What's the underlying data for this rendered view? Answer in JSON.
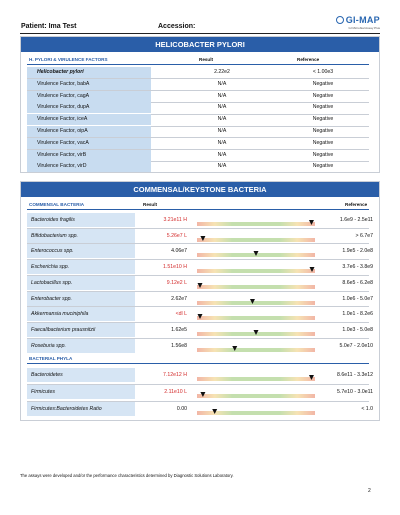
{
  "header": {
    "patient_label": "Patient: Ima Test",
    "accession_label": "Accession:",
    "logo_title": "GI-MAP",
    "logo_sub": "GI Microbial Assay Plus"
  },
  "hpylori": {
    "title": "HELICOBACTER PYLORI",
    "col_factors": "H. PYLORI & VIRULENCE FACTORS",
    "col_result": "Result",
    "col_reference": "Reference",
    "rows": [
      {
        "name": "Helicobacter pylori",
        "result": "2.22e2",
        "reference": "< 1.00e3"
      },
      {
        "name": "Virulence Factor, babA",
        "result": "N/A",
        "reference": "Negative"
      },
      {
        "name": "Virulence Factor, cagA",
        "result": "N/A",
        "reference": "Negative"
      },
      {
        "name": "Virulence Factor, dupA",
        "result": "N/A",
        "reference": "Negative"
      },
      {
        "name": "Virulence Factor, iceA",
        "result": "N/A",
        "reference": "Negative"
      },
      {
        "name": "Virulence Factor, oipA",
        "result": "N/A",
        "reference": "Negative"
      },
      {
        "name": "Virulence Factor, vacA",
        "result": "N/A",
        "reference": "Negative"
      },
      {
        "name": "Virulence Factor, virB",
        "result": "N/A",
        "reference": "Negative"
      },
      {
        "name": "Virulence Factor, virD",
        "result": "N/A",
        "reference": "Negative"
      }
    ]
  },
  "commensal": {
    "title": "COMMENSAL/KEYSTONE BACTERIA",
    "col_section": "COMMENSAL BACTERIA",
    "col_result": "Result",
    "col_reference": "Reference",
    "rows": [
      {
        "name": "Bacteroides fragilis",
        "result": "3.21e11 H",
        "flag": "high",
        "marker": 0.97,
        "reference": "1.6e9 - 2.5e11"
      },
      {
        "name": "Bifidobacterium spp.",
        "result": "5.26e7 L",
        "flag": "low",
        "marker": 0.05,
        "reference": "> 6.7e7"
      },
      {
        "name": "Enterococcus spp.",
        "result": "4.06e7",
        "flag": "normal",
        "marker": 0.5,
        "reference": "1.9e5 - 2.0e8"
      },
      {
        "name": "Escherichia spp.",
        "result": "1.51e10 H",
        "flag": "high",
        "marker": 0.98,
        "reference": "3.7e6 - 3.8e9"
      },
      {
        "name": "Lactobacillus spp.",
        "result": "9.12e2 L",
        "flag": "low",
        "marker": 0.02,
        "reference": "8.6e5 - 6.2e8"
      },
      {
        "name": "Enterobacter spp.",
        "result": "2.62e7",
        "flag": "normal",
        "marker": 0.47,
        "reference": "1.0e6 - 5.0e7"
      },
      {
        "name": "Akkermansia muciniphila",
        "result": "<dl L",
        "flag": "low",
        "marker": 0.02,
        "reference": "1.0e1 - 8.2e6"
      },
      {
        "name": "Faecalibacterium prausnitzii",
        "result": "1.62e5",
        "flag": "normal",
        "marker": 0.5,
        "reference": "1.0e3 - 5.0e8"
      },
      {
        "name": "Roseburia spp.",
        "result": "1.56e8",
        "flag": "normal",
        "marker": 0.32,
        "reference": "5.0e7 - 2.0e10"
      }
    ],
    "phyla_label": "BACTERIAL PHYLA",
    "phyla": [
      {
        "name": "Bacteroidetes",
        "result": "7.12e12 H",
        "flag": "high",
        "marker": 0.97,
        "reference": "8.6e11 - 3.3e12"
      },
      {
        "name": "Firmicutes",
        "result": "2.11e10 L",
        "flag": "low",
        "marker": 0.05,
        "reference": "5.7e10 - 3.0e11"
      },
      {
        "name": "Firmicutes:Bacteroidetes Ratio",
        "result": "0.00",
        "flag": "normal",
        "marker": 0.15,
        "reference": "< 1.0"
      }
    ]
  },
  "footnote": "The assays were developed and/or the performance characteristics determined by Diagnostic Solutions Laboratory.",
  "page_number": "2",
  "colors": {
    "header_blue": "#2a5ea8",
    "name_bg": "#d6e5f4",
    "flag_red": "#d32a2a"
  }
}
